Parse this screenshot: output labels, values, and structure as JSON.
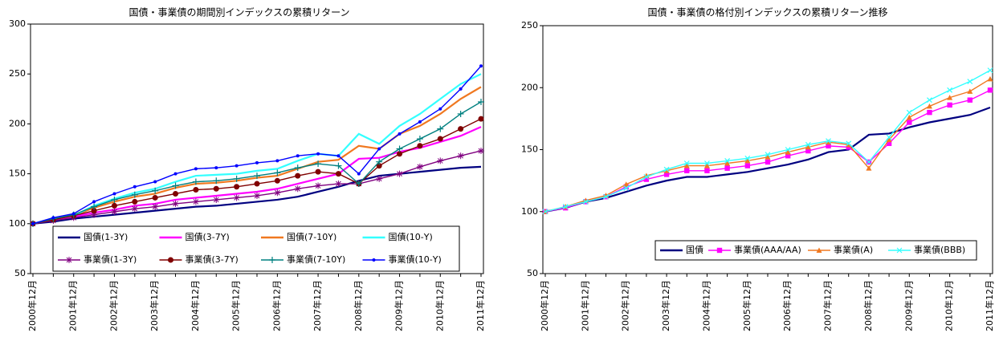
{
  "chart_data": [
    {
      "type": "line",
      "title": "国債・事業債の期間別インデックスの累積リターン",
      "categories": [
        "2000年12月",
        null,
        "2001年12月",
        null,
        "2002年12月",
        null,
        "2003年12月",
        null,
        "2004年12月",
        null,
        "2005年12月",
        null,
        "2006年12月",
        null,
        "2007年12月",
        null,
        "2008年12月",
        null,
        "2009年12月",
        null,
        "2010年12月",
        null,
        "2011年12月"
      ],
      "ylim": [
        50,
        300
      ],
      "yticks": [
        50,
        100,
        150,
        200,
        250,
        300
      ],
      "grid": false,
      "legend": "lower right",
      "series": [
        {
          "name": "国債(1-3Y)",
          "color": "#000080",
          "marker": "none",
          "values": [
            100,
            102,
            105,
            107,
            109,
            111,
            113,
            115,
            117,
            118,
            120,
            122,
            124,
            127,
            132,
            137,
            143,
            148,
            150,
            152,
            154,
            156,
            157
          ]
        },
        {
          "name": "国債(3-7Y)",
          "color": "#ff00ff",
          "marker": "none",
          "values": [
            100,
            104,
            107,
            111,
            114,
            118,
            120,
            124,
            126,
            128,
            130,
            132,
            135,
            140,
            145,
            150,
            165,
            166,
            172,
            176,
            182,
            188,
            197
          ]
        },
        {
          "name": "国債(7-10Y)",
          "color": "#f07820",
          "marker": "none",
          "values": [
            100,
            105,
            108,
            116,
            122,
            127,
            130,
            136,
            140,
            141,
            143,
            146,
            148,
            155,
            162,
            164,
            178,
            175,
            190,
            198,
            210,
            225,
            237
          ]
        },
        {
          "name": "国債(10-Y)",
          "color": "#33ffff",
          "marker": "none",
          "values": [
            100,
            105,
            108,
            118,
            125,
            131,
            135,
            142,
            148,
            149,
            150,
            153,
            155,
            163,
            170,
            168,
            190,
            180,
            198,
            210,
            225,
            240,
            250
          ]
        },
        {
          "name": "事業債(1-3Y)",
          "color": "#800080",
          "marker": "star",
          "values": [
            100,
            103,
            106,
            109,
            112,
            115,
            117,
            120,
            122,
            124,
            126,
            128,
            131,
            135,
            138,
            140,
            140,
            145,
            150,
            157,
            163,
            168,
            173
          ]
        },
        {
          "name": "事業債(3-7Y)",
          "color": "#800000",
          "marker": "circle",
          "values": [
            100,
            104,
            108,
            113,
            118,
            122,
            126,
            130,
            134,
            135,
            137,
            140,
            143,
            148,
            152,
            150,
            140,
            158,
            170,
            178,
            185,
            195,
            205
          ]
        },
        {
          "name": "事業債(7-10Y)",
          "color": "#008080",
          "marker": "plus",
          "values": [
            100,
            105,
            109,
            117,
            124,
            129,
            133,
            138,
            142,
            143,
            145,
            148,
            151,
            156,
            160,
            158,
            140,
            162,
            175,
            185,
            195,
            210,
            222
          ]
        },
        {
          "name": "事業債(10-Y)",
          "color": "#0000ff",
          "marker": "dot",
          "values": [
            100,
            106,
            110,
            122,
            130,
            137,
            142,
            150,
            155,
            156,
            158,
            161,
            163,
            168,
            170,
            168,
            150,
            175,
            190,
            202,
            215,
            235,
            258
          ]
        }
      ]
    },
    {
      "type": "line",
      "title": "国債・事業債の格付別インデックスの累積リターン推移",
      "categories": [
        "2000年12月",
        null,
        "2001年12月",
        null,
        "2002年12月",
        null,
        "2003年12月",
        null,
        "2004年12月",
        null,
        "2005年12月",
        null,
        "2006年12月",
        null,
        "2007年12月",
        null,
        "2008年12月",
        null,
        "2009年12月",
        null,
        "2010年12月",
        null,
        "2011年12月"
      ],
      "ylim": [
        50,
        250
      ],
      "yticks": [
        50,
        100,
        150,
        200,
        250
      ],
      "grid": false,
      "legend": "lower right",
      "series": [
        {
          "name": "国債",
          "color": "#000080",
          "marker": "none",
          "values": [
            100,
            103,
            108,
            111,
            116,
            121,
            125,
            128,
            128,
            130,
            132,
            135,
            138,
            142,
            148,
            150,
            162,
            163,
            168,
            172,
            175,
            178,
            184
          ]
        },
        {
          "name": "事業債(AAA/AA)",
          "color": "#ff00ff",
          "marker": "square",
          "values": [
            100,
            103,
            108,
            112,
            120,
            126,
            130,
            133,
            133,
            135,
            137,
            140,
            145,
            149,
            153,
            152,
            140,
            155,
            172,
            180,
            186,
            190,
            198
          ]
        },
        {
          "name": "事業債(A)",
          "color": "#f07820",
          "marker": "triangle",
          "values": [
            100,
            104,
            109,
            113,
            122,
            129,
            133,
            137,
            137,
            139,
            141,
            144,
            148,
            152,
            156,
            154,
            135,
            158,
            176,
            185,
            192,
            197,
            207
          ]
        },
        {
          "name": "事業債(BBB)",
          "color": "#33ffff",
          "marker": "x",
          "values": [
            100,
            104,
            108,
            112,
            119,
            128,
            134,
            139,
            139,
            141,
            143,
            146,
            150,
            154,
            157,
            155,
            140,
            160,
            180,
            190,
            198,
            205,
            214
          ]
        }
      ]
    }
  ]
}
